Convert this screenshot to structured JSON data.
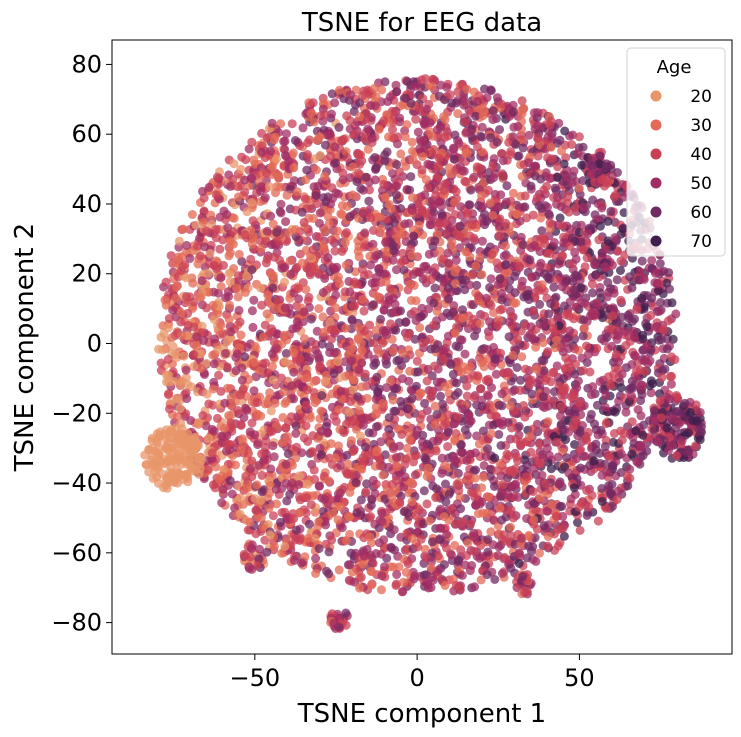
{
  "chart_data": {
    "type": "scatter",
    "title": "TSNE for EEG data",
    "xlabel": "TSNE component 1",
    "ylabel": "TSNE component 2",
    "xlim": [
      -94,
      97
    ],
    "ylim": [
      -89,
      87
    ],
    "xticks": [
      -50,
      0,
      50
    ],
    "yticks": [
      -80,
      -60,
      -40,
      -20,
      0,
      20,
      40,
      60,
      80
    ],
    "xtick_labels": [
      "−50",
      "0",
      "50"
    ],
    "ytick_labels": [
      "−80",
      "−60",
      "−40",
      "−20",
      "0",
      "20",
      "40",
      "60",
      "80"
    ],
    "grid": false,
    "legend": {
      "title": "Age",
      "placement": "top-right",
      "entries": [
        {
          "label": "20",
          "color": "#e8956a"
        },
        {
          "label": "30",
          "color": "#e36a56"
        },
        {
          "label": "40",
          "color": "#c94055"
        },
        {
          "label": "50",
          "color": "#a12d63"
        },
        {
          "label": "60",
          "color": "#712a62"
        },
        {
          "label": "70",
          "color": "#3e1f4b"
        }
      ]
    },
    "hue_variable": "Age",
    "clusters": [
      {
        "name": "main",
        "cx": 0,
        "cy": 2,
        "rx": 80,
        "ry": 74,
        "n": 5200
      },
      {
        "name": "left-light",
        "cx": -75,
        "cy": -33,
        "rx": 9,
        "ry": 9,
        "n": 150,
        "age": "20"
      },
      {
        "name": "right-dense",
        "cx": 80,
        "cy": -24,
        "rx": 8,
        "ry": 10,
        "n": 160
      },
      {
        "name": "top-right-small",
        "cx": 57,
        "cy": 50,
        "rx": 4,
        "ry": 5,
        "n": 35
      },
      {
        "name": "bottom-small-a",
        "cx": -24,
        "cy": -79,
        "rx": 3,
        "ry": 3,
        "n": 25
      },
      {
        "name": "bottom-small-b",
        "cx": 33,
        "cy": -69,
        "rx": 3,
        "ry": 3,
        "n": 25
      },
      {
        "name": "bottom-left-small",
        "cx": -50,
        "cy": -61,
        "rx": 4,
        "ry": 4,
        "n": 30
      }
    ]
  }
}
